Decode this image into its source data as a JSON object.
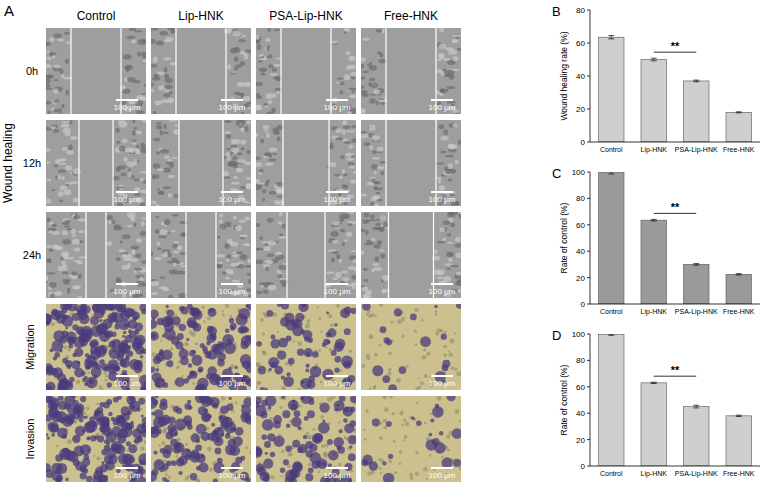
{
  "panel_a": {
    "label": "A",
    "columns": [
      "Control",
      "Lip-HNK",
      "PSA-Lip-HNK",
      "Free-HNK"
    ],
    "group_label": "Wound healing",
    "rows": [
      "0h",
      "12h",
      "24h",
      "Migration",
      "Invasion"
    ],
    "scale_bar": "100 μm"
  },
  "chart_data": [
    {
      "type": "bar",
      "title": "B",
      "y_label": "Wound healing rate (%)",
      "categories": [
        "Control",
        "Lip-HNK",
        "PSA-Lip-HNK",
        "Free-HNK"
      ],
      "values": [
        63.5,
        50,
        37,
        18
      ],
      "errors": [
        1,
        0.8,
        0.5,
        0.3
      ],
      "color": "#cfcfcf",
      "ylim": [
        0,
        80
      ],
      "yticks": [
        0,
        20,
        40,
        60,
        80
      ],
      "annotation": "**"
    },
    {
      "type": "bar",
      "title": "C",
      "y_label": "Rate of control (%)",
      "categories": [
        "Control",
        "Lip-HNK",
        "PSA-Lip-HNK",
        "Free-HNK"
      ],
      "values": [
        100,
        63.5,
        30,
        22.5
      ],
      "errors": [
        1.5,
        0.6,
        0.6,
        0.5
      ],
      "color": "#9a9a9a",
      "ylim": [
        0,
        100
      ],
      "yticks": [
        0,
        20,
        40,
        60,
        80,
        100
      ],
      "annotation": "**"
    },
    {
      "type": "bar",
      "title": "D",
      "y_label": "Rate of control (%)",
      "categories": [
        "Control",
        "Lip-HNK",
        "PSA-Lip-HNK",
        "Free-HNK"
      ],
      "values": [
        99.5,
        63,
        45,
        38
      ],
      "errors": [
        0.5,
        0.5,
        1,
        0.5
      ],
      "color": "#cfcfcf",
      "ylim": [
        0,
        100
      ],
      "yticks": [
        0,
        20,
        40,
        60,
        80,
        100
      ],
      "annotation": "**"
    }
  ]
}
